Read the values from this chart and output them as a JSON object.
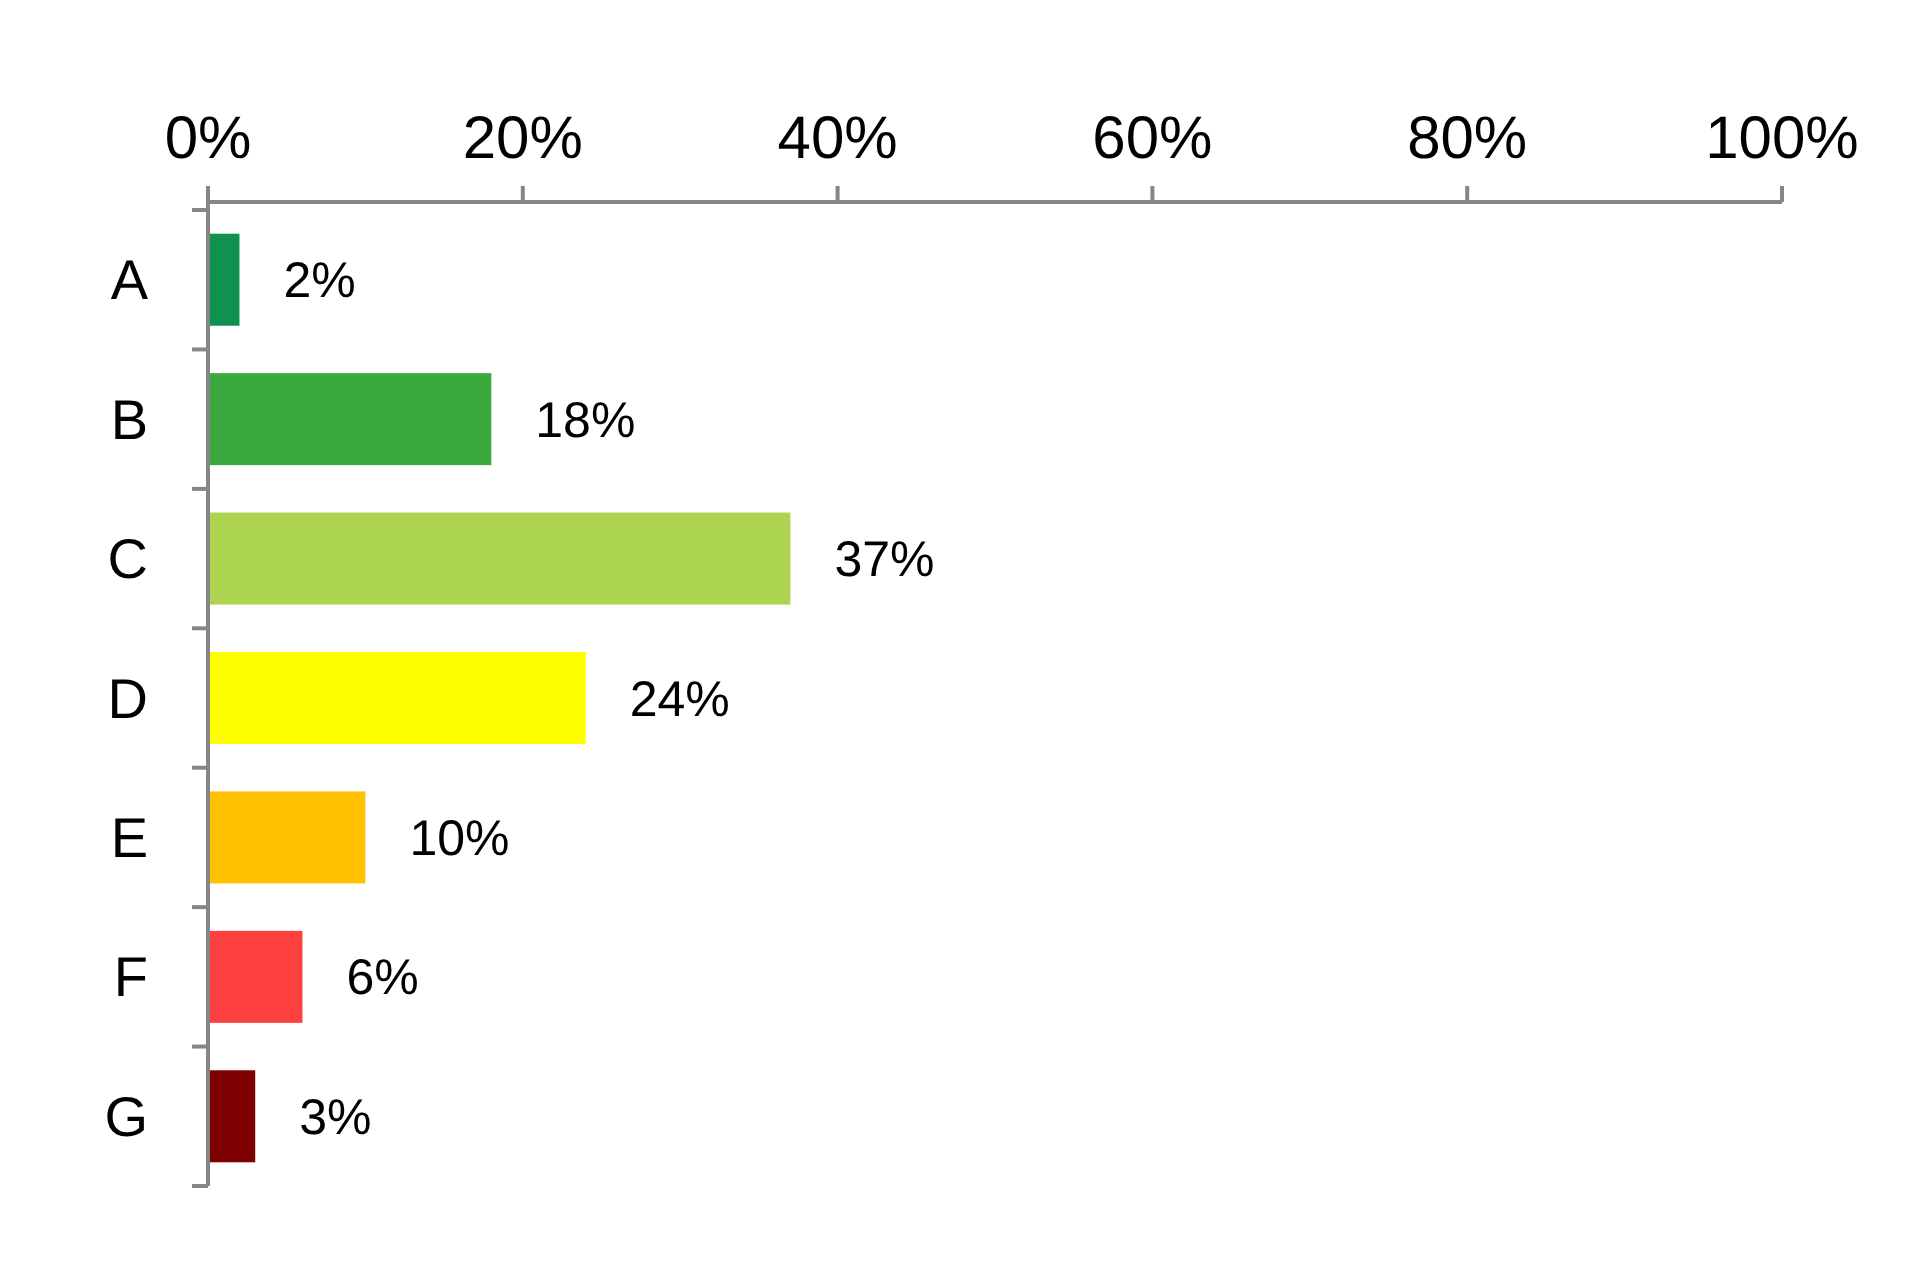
{
  "chart_data": {
    "type": "bar",
    "orientation": "horizontal",
    "categories": [
      "A",
      "B",
      "C",
      "D",
      "E",
      "F",
      "G"
    ],
    "values": [
      2,
      18,
      37,
      24,
      10,
      6,
      3
    ],
    "colors": [
      "#0f9150",
      "#3aaa3f",
      "#acd450",
      "#ffff00",
      "#ffc000",
      "#ff4040",
      "#7f0000"
    ],
    "value_labels": [
      "2%",
      "18%",
      "37%",
      "24%",
      "10%",
      "6%",
      "3%"
    ],
    "xlim": [
      0,
      100
    ],
    "xticks": [
      {
        "value": 0,
        "label": "0%"
      },
      {
        "value": 20,
        "label": "20%"
      },
      {
        "value": 40,
        "label": "40%"
      },
      {
        "value": 60,
        "label": "60%"
      },
      {
        "value": 80,
        "label": "80%"
      },
      {
        "value": 100,
        "label": "100%"
      }
    ],
    "grid": false
  }
}
